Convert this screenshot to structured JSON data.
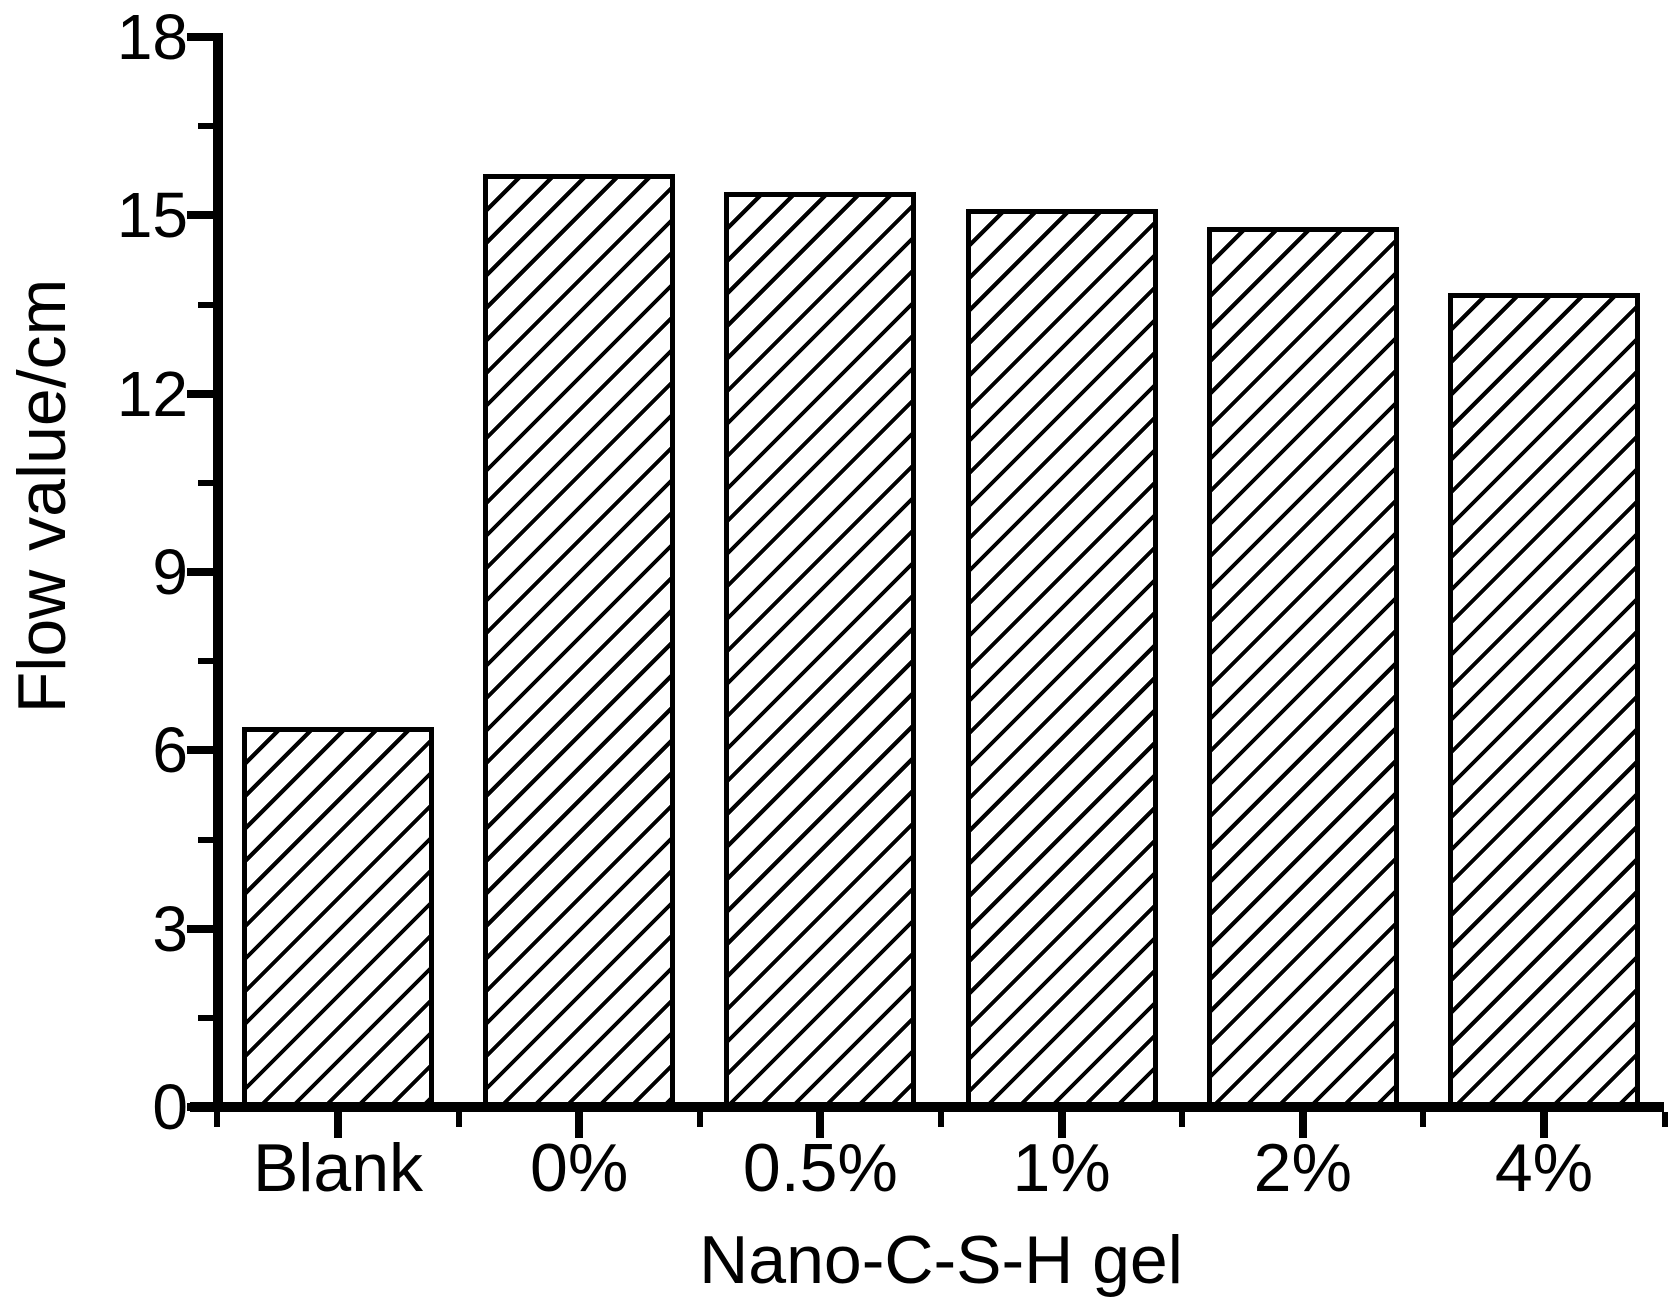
{
  "chart_data": {
    "type": "bar",
    "title": "",
    "xlabel": "Nano-C-S-H gel",
    "ylabel": "Flow value/cm",
    "categories": [
      "Blank",
      "0%",
      "0.5%",
      "1%",
      "2%",
      "4%"
    ],
    "values": [
      6.4,
      15.7,
      15.4,
      15.1,
      14.8,
      13.7
    ],
    "ylim": [
      0,
      18
    ],
    "yticks_major": [
      0,
      3,
      6,
      9,
      12,
      15,
      18
    ],
    "yticks_minor": [
      1.5,
      4.5,
      7.5,
      10.5,
      13.5,
      16.5
    ],
    "grid": false,
    "legend": "none",
    "bar_fill": "#ffffff",
    "bar_pattern": "diagonal-hatch-45deg",
    "colors": {
      "hatch": "#000000",
      "axis": "#000000",
      "text": "#000000",
      "background": "#ffffff"
    }
  }
}
